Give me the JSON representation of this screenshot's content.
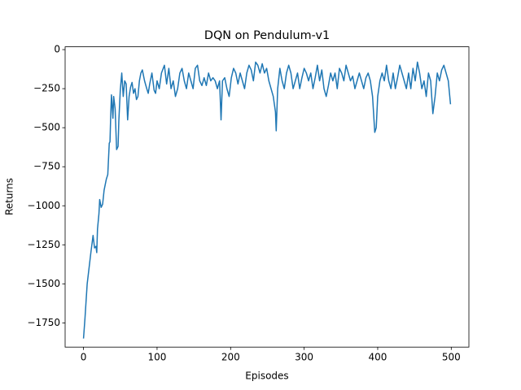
{
  "chart_data": {
    "type": "line",
    "title": "DQN on Pendulum-v1",
    "x_label": "Episodes",
    "y_label": "Returns",
    "x": [
      0,
      2,
      5,
      10,
      13,
      15,
      17,
      18,
      19,
      21,
      22,
      24,
      26,
      28,
      31,
      33,
      35,
      36,
      37,
      38,
      40,
      41,
      43,
      45,
      47,
      48,
      50,
      52,
      54,
      56,
      58,
      60,
      62,
      64,
      66,
      68,
      70,
      72,
      74,
      76,
      78,
      80,
      83,
      86,
      88,
      90,
      93,
      96,
      98,
      100,
      103,
      106,
      110,
      113,
      116,
      119,
      122,
      125,
      128,
      131,
      134,
      137,
      140,
      143,
      146,
      149,
      152,
      155,
      158,
      161,
      164,
      167,
      170,
      173,
      176,
      179,
      182,
      185,
      187,
      189,
      192,
      195,
      198,
      201,
      204,
      207,
      210,
      213,
      216,
      219,
      222,
      225,
      228,
      231,
      234,
      237,
      240,
      243,
      246,
      249,
      252,
      255,
      258,
      261,
      262,
      264,
      267,
      270,
      273,
      276,
      279,
      282,
      285,
      288,
      291,
      294,
      297,
      300,
      303,
      306,
      309,
      312,
      315,
      318,
      321,
      324,
      327,
      330,
      333,
      336,
      339,
      342,
      345,
      348,
      351,
      354,
      357,
      360,
      363,
      366,
      369,
      372,
      375,
      378,
      381,
      384,
      387,
      390,
      393,
      396,
      398,
      400,
      403,
      406,
      409,
      412,
      415,
      418,
      421,
      424,
      427,
      430,
      433,
      436,
      439,
      442,
      445,
      448,
      451,
      454,
      457,
      460,
      463,
      466,
      469,
      472,
      475,
      478,
      481,
      484,
      487,
      490,
      493,
      496,
      499
    ],
    "values": [
      -1850,
      -1720,
      -1500,
      -1300,
      -1190,
      -1270,
      -1260,
      -1300,
      -1150,
      -1050,
      -960,
      -1010,
      -990,
      -900,
      -830,
      -800,
      -600,
      -590,
      -420,
      -290,
      -440,
      -300,
      -380,
      -640,
      -620,
      -460,
      -260,
      -150,
      -300,
      -200,
      -220,
      -450,
      -300,
      -240,
      -210,
      -280,
      -250,
      -320,
      -300,
      -200,
      -150,
      -130,
      -200,
      -250,
      -280,
      -220,
      -150,
      -260,
      -280,
      -200,
      -250,
      -150,
      -100,
      -220,
      -120,
      -250,
      -200,
      -300,
      -250,
      -150,
      -120,
      -200,
      -250,
      -150,
      -200,
      -250,
      -120,
      -100,
      -200,
      -230,
      -180,
      -230,
      -150,
      -200,
      -180,
      -200,
      -250,
      -200,
      -450,
      -200,
      -180,
      -250,
      -300,
      -180,
      -120,
      -150,
      -220,
      -150,
      -200,
      -250,
      -150,
      -100,
      -130,
      -200,
      -80,
      -100,
      -150,
      -90,
      -150,
      -120,
      -200,
      -250,
      -300,
      -400,
      -520,
      -250,
      -120,
      -200,
      -250,
      -150,
      -100,
      -150,
      -250,
      -200,
      -150,
      -250,
      -180,
      -120,
      -150,
      -200,
      -150,
      -250,
      -180,
      -100,
      -200,
      -130,
      -250,
      -300,
      -230,
      -150,
      -200,
      -150,
      -250,
      -120,
      -150,
      -200,
      -100,
      -150,
      -200,
      -170,
      -250,
      -200,
      -150,
      -200,
      -250,
      -180,
      -150,
      -200,
      -300,
      -530,
      -500,
      -300,
      -200,
      -150,
      -200,
      -100,
      -200,
      -250,
      -150,
      -250,
      -180,
      -100,
      -150,
      -200,
      -250,
      -150,
      -250,
      -120,
      -200,
      -80,
      -150,
      -250,
      -200,
      -300,
      -150,
      -200,
      -410,
      -300,
      -150,
      -200,
      -130,
      -100,
      -150,
      -200,
      -350
    ],
    "color": "#1f77b4",
    "xlim": [
      -25,
      524
    ],
    "ylim": [
      -1905,
      18
    ],
    "xticks": [
      0,
      100,
      200,
      300,
      400,
      500
    ],
    "yticks": [
      0,
      {
        "value": -250,
        "label": "−250"
      },
      {
        "value": -500,
        "label": "−500"
      },
      {
        "value": -750,
        "label": "−750"
      },
      {
        "value": -1000,
        "label": "−1000"
      },
      {
        "value": -1250,
        "label": "−1250"
      },
      {
        "value": -1500,
        "label": "−1500"
      },
      {
        "value": -1750,
        "label": "−1750"
      }
    ]
  }
}
